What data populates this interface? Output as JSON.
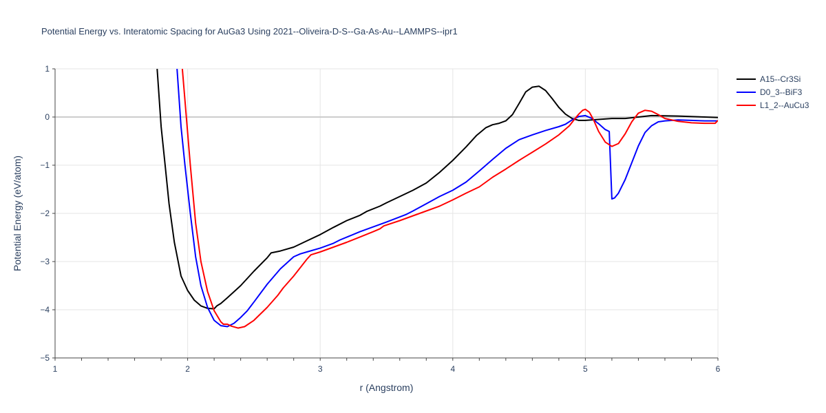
{
  "chart_data": {
    "type": "line",
    "title": "Potential Energy vs. Interatomic Spacing for AuGa3 Using 2021--Oliveira-D-S--Ga-As-Au--LAMMPS--ipr1",
    "xlabel": "r (Angstrom)",
    "ylabel": "Potential Energy (eV/atom)",
    "xlim": [
      1,
      6
    ],
    "ylim": [
      -5,
      1
    ],
    "xticks": [
      1,
      2,
      3,
      4,
      5,
      6
    ],
    "yticks": [
      -5,
      -4,
      -3,
      -2,
      -1,
      0,
      1
    ],
    "ytick_labels": [
      "−5",
      "−4",
      "−3",
      "−2",
      "−1",
      "0",
      "1"
    ],
    "grid": true,
    "legend_position": "top-right",
    "series": [
      {
        "name": "A15--Cr3Si",
        "color": "#000000",
        "points": [
          [
            1.77,
            1.0
          ],
          [
            1.8,
            -0.2
          ],
          [
            1.83,
            -1.0
          ],
          [
            1.86,
            -1.8
          ],
          [
            1.9,
            -2.6
          ],
          [
            1.95,
            -3.3
          ],
          [
            2.0,
            -3.6
          ],
          [
            2.05,
            -3.8
          ],
          [
            2.1,
            -3.92
          ],
          [
            2.15,
            -3.97
          ],
          [
            2.2,
            -3.98
          ],
          [
            2.22,
            -3.92
          ],
          [
            2.25,
            -3.87
          ],
          [
            2.3,
            -3.75
          ],
          [
            2.4,
            -3.5
          ],
          [
            2.5,
            -3.2
          ],
          [
            2.6,
            -2.92
          ],
          [
            2.63,
            -2.82
          ],
          [
            2.7,
            -2.78
          ],
          [
            2.8,
            -2.7
          ],
          [
            2.9,
            -2.57
          ],
          [
            3.0,
            -2.44
          ],
          [
            3.1,
            -2.29
          ],
          [
            3.2,
            -2.15
          ],
          [
            3.3,
            -2.04
          ],
          [
            3.35,
            -1.96
          ],
          [
            3.45,
            -1.85
          ],
          [
            3.5,
            -1.78
          ],
          [
            3.6,
            -1.65
          ],
          [
            3.7,
            -1.52
          ],
          [
            3.8,
            -1.37
          ],
          [
            3.9,
            -1.15
          ],
          [
            4.0,
            -0.9
          ],
          [
            4.1,
            -0.62
          ],
          [
            4.18,
            -0.38
          ],
          [
            4.25,
            -0.22
          ],
          [
            4.3,
            -0.16
          ],
          [
            4.35,
            -0.13
          ],
          [
            4.4,
            -0.08
          ],
          [
            4.45,
            0.05
          ],
          [
            4.5,
            0.28
          ],
          [
            4.55,
            0.52
          ],
          [
            4.6,
            0.62
          ],
          [
            4.65,
            0.64
          ],
          [
            4.7,
            0.55
          ],
          [
            4.75,
            0.38
          ],
          [
            4.8,
            0.2
          ],
          [
            4.85,
            0.06
          ],
          [
            4.9,
            -0.03
          ],
          [
            4.95,
            -0.07
          ],
          [
            5.0,
            -0.07
          ],
          [
            5.1,
            -0.05
          ],
          [
            5.2,
            -0.03
          ],
          [
            5.3,
            -0.03
          ],
          [
            5.5,
            0.03
          ],
          [
            5.7,
            0.02
          ],
          [
            5.9,
            0.0
          ],
          [
            6.0,
            -0.01
          ]
        ]
      },
      {
        "name": "D0_3--BiF3",
        "color": "#0000ff",
        "points": [
          [
            1.92,
            1.0
          ],
          [
            1.95,
            -0.2
          ],
          [
            1.98,
            -1.0
          ],
          [
            2.02,
            -2.0
          ],
          [
            2.06,
            -2.9
          ],
          [
            2.1,
            -3.5
          ],
          [
            2.15,
            -3.95
          ],
          [
            2.2,
            -4.22
          ],
          [
            2.25,
            -4.33
          ],
          [
            2.3,
            -4.35
          ],
          [
            2.35,
            -4.28
          ],
          [
            2.4,
            -4.16
          ],
          [
            2.45,
            -4.02
          ],
          [
            2.5,
            -3.84
          ],
          [
            2.6,
            -3.47
          ],
          [
            2.7,
            -3.15
          ],
          [
            2.8,
            -2.9
          ],
          [
            2.85,
            -2.84
          ],
          [
            2.9,
            -2.8
          ],
          [
            3.0,
            -2.72
          ],
          [
            3.1,
            -2.62
          ],
          [
            3.15,
            -2.55
          ],
          [
            3.3,
            -2.38
          ],
          [
            3.5,
            -2.18
          ],
          [
            3.65,
            -2.02
          ],
          [
            3.7,
            -1.95
          ],
          [
            3.8,
            -1.8
          ],
          [
            3.9,
            -1.65
          ],
          [
            4.0,
            -1.52
          ],
          [
            4.1,
            -1.35
          ],
          [
            4.2,
            -1.12
          ],
          [
            4.3,
            -0.88
          ],
          [
            4.4,
            -0.65
          ],
          [
            4.5,
            -0.47
          ],
          [
            4.6,
            -0.37
          ],
          [
            4.7,
            -0.28
          ],
          [
            4.8,
            -0.2
          ],
          [
            4.85,
            -0.15
          ],
          [
            4.9,
            -0.06
          ],
          [
            4.95,
            0.01
          ],
          [
            5.0,
            0.03
          ],
          [
            5.05,
            -0.03
          ],
          [
            5.1,
            -0.14
          ],
          [
            5.15,
            -0.26
          ],
          [
            5.18,
            -0.3
          ],
          [
            5.2,
            -1.7
          ],
          [
            5.22,
            -1.68
          ],
          [
            5.25,
            -1.58
          ],
          [
            5.3,
            -1.3
          ],
          [
            5.35,
            -0.95
          ],
          [
            5.4,
            -0.6
          ],
          [
            5.45,
            -0.32
          ],
          [
            5.5,
            -0.18
          ],
          [
            5.55,
            -0.1
          ],
          [
            5.6,
            -0.08
          ],
          [
            5.7,
            -0.06
          ],
          [
            5.8,
            -0.07
          ],
          [
            5.9,
            -0.08
          ],
          [
            6.0,
            -0.08
          ]
        ]
      },
      {
        "name": "L1_2--AuCu3",
        "color": "#ff0000",
        "points": [
          [
            1.96,
            1.0
          ],
          [
            1.99,
            0.0
          ],
          [
            2.02,
            -1.0
          ],
          [
            2.06,
            -2.2
          ],
          [
            2.1,
            -3.0
          ],
          [
            2.15,
            -3.62
          ],
          [
            2.2,
            -4.02
          ],
          [
            2.25,
            -4.25
          ],
          [
            2.27,
            -4.3
          ],
          [
            2.3,
            -4.3
          ],
          [
            2.33,
            -4.34
          ],
          [
            2.38,
            -4.38
          ],
          [
            2.43,
            -4.35
          ],
          [
            2.5,
            -4.22
          ],
          [
            2.6,
            -3.95
          ],
          [
            2.68,
            -3.7
          ],
          [
            2.72,
            -3.55
          ],
          [
            2.8,
            -3.3
          ],
          [
            2.9,
            -2.95
          ],
          [
            2.93,
            -2.86
          ],
          [
            3.0,
            -2.8
          ],
          [
            3.1,
            -2.7
          ],
          [
            3.2,
            -2.6
          ],
          [
            3.3,
            -2.49
          ],
          [
            3.4,
            -2.38
          ],
          [
            3.45,
            -2.32
          ],
          [
            3.48,
            -2.26
          ],
          [
            3.6,
            -2.15
          ],
          [
            3.7,
            -2.05
          ],
          [
            3.8,
            -1.95
          ],
          [
            3.9,
            -1.85
          ],
          [
            4.0,
            -1.72
          ],
          [
            4.1,
            -1.58
          ],
          [
            4.2,
            -1.45
          ],
          [
            4.25,
            -1.35
          ],
          [
            4.3,
            -1.25
          ],
          [
            4.4,
            -1.08
          ],
          [
            4.5,
            -0.9
          ],
          [
            4.6,
            -0.73
          ],
          [
            4.7,
            -0.56
          ],
          [
            4.8,
            -0.37
          ],
          [
            4.88,
            -0.18
          ],
          [
            4.92,
            -0.04
          ],
          [
            4.95,
            0.06
          ],
          [
            4.98,
            0.14
          ],
          [
            5.0,
            0.16
          ],
          [
            5.03,
            0.1
          ],
          [
            5.06,
            -0.05
          ],
          [
            5.1,
            -0.3
          ],
          [
            5.15,
            -0.52
          ],
          [
            5.2,
            -0.61
          ],
          [
            5.25,
            -0.55
          ],
          [
            5.3,
            -0.35
          ],
          [
            5.35,
            -0.1
          ],
          [
            5.4,
            0.08
          ],
          [
            5.45,
            0.14
          ],
          [
            5.5,
            0.12
          ],
          [
            5.55,
            0.05
          ],
          [
            5.6,
            -0.03
          ],
          [
            5.7,
            -0.09
          ],
          [
            5.8,
            -0.12
          ],
          [
            5.9,
            -0.13
          ],
          [
            5.98,
            -0.13
          ],
          [
            6.0,
            -0.07
          ]
        ]
      }
    ]
  }
}
